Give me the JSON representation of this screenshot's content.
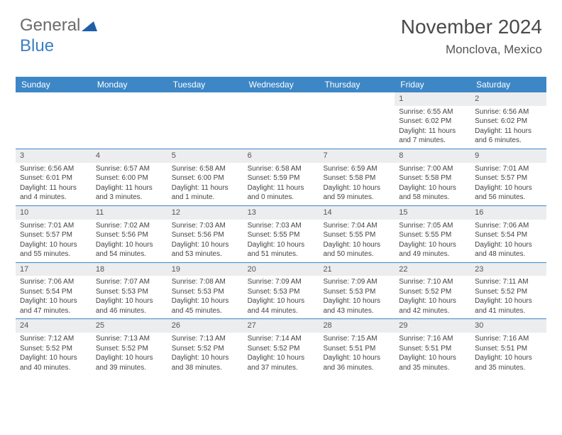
{
  "brand": {
    "part1": "General",
    "part2": "Blue"
  },
  "title": "November 2024",
  "location": "Monclova, Mexico",
  "colors": {
    "header_bg": "#3d87c7",
    "header_text": "#ffffff",
    "daynum_bg": "#ecedee",
    "text": "#444444",
    "rule": "#3d87c7",
    "brand_gray": "#6a6a6a",
    "brand_blue": "#3b7fc4"
  },
  "day_headers": [
    "Sunday",
    "Monday",
    "Tuesday",
    "Wednesday",
    "Thursday",
    "Friday",
    "Saturday"
  ],
  "weeks": [
    [
      {
        "n": "",
        "sunrise": "",
        "sunset": "",
        "daylight": ""
      },
      {
        "n": "",
        "sunrise": "",
        "sunset": "",
        "daylight": ""
      },
      {
        "n": "",
        "sunrise": "",
        "sunset": "",
        "daylight": ""
      },
      {
        "n": "",
        "sunrise": "",
        "sunset": "",
        "daylight": ""
      },
      {
        "n": "",
        "sunrise": "",
        "sunset": "",
        "daylight": ""
      },
      {
        "n": "1",
        "sunrise": "Sunrise: 6:55 AM",
        "sunset": "Sunset: 6:02 PM",
        "daylight": "Daylight: 11 hours and 7 minutes."
      },
      {
        "n": "2",
        "sunrise": "Sunrise: 6:56 AM",
        "sunset": "Sunset: 6:02 PM",
        "daylight": "Daylight: 11 hours and 6 minutes."
      }
    ],
    [
      {
        "n": "3",
        "sunrise": "Sunrise: 6:56 AM",
        "sunset": "Sunset: 6:01 PM",
        "daylight": "Daylight: 11 hours and 4 minutes."
      },
      {
        "n": "4",
        "sunrise": "Sunrise: 6:57 AM",
        "sunset": "Sunset: 6:00 PM",
        "daylight": "Daylight: 11 hours and 3 minutes."
      },
      {
        "n": "5",
        "sunrise": "Sunrise: 6:58 AM",
        "sunset": "Sunset: 6:00 PM",
        "daylight": "Daylight: 11 hours and 1 minute."
      },
      {
        "n": "6",
        "sunrise": "Sunrise: 6:58 AM",
        "sunset": "Sunset: 5:59 PM",
        "daylight": "Daylight: 11 hours and 0 minutes."
      },
      {
        "n": "7",
        "sunrise": "Sunrise: 6:59 AM",
        "sunset": "Sunset: 5:58 PM",
        "daylight": "Daylight: 10 hours and 59 minutes."
      },
      {
        "n": "8",
        "sunrise": "Sunrise: 7:00 AM",
        "sunset": "Sunset: 5:58 PM",
        "daylight": "Daylight: 10 hours and 58 minutes."
      },
      {
        "n": "9",
        "sunrise": "Sunrise: 7:01 AM",
        "sunset": "Sunset: 5:57 PM",
        "daylight": "Daylight: 10 hours and 56 minutes."
      }
    ],
    [
      {
        "n": "10",
        "sunrise": "Sunrise: 7:01 AM",
        "sunset": "Sunset: 5:57 PM",
        "daylight": "Daylight: 10 hours and 55 minutes."
      },
      {
        "n": "11",
        "sunrise": "Sunrise: 7:02 AM",
        "sunset": "Sunset: 5:56 PM",
        "daylight": "Daylight: 10 hours and 54 minutes."
      },
      {
        "n": "12",
        "sunrise": "Sunrise: 7:03 AM",
        "sunset": "Sunset: 5:56 PM",
        "daylight": "Daylight: 10 hours and 53 minutes."
      },
      {
        "n": "13",
        "sunrise": "Sunrise: 7:03 AM",
        "sunset": "Sunset: 5:55 PM",
        "daylight": "Daylight: 10 hours and 51 minutes."
      },
      {
        "n": "14",
        "sunrise": "Sunrise: 7:04 AM",
        "sunset": "Sunset: 5:55 PM",
        "daylight": "Daylight: 10 hours and 50 minutes."
      },
      {
        "n": "15",
        "sunrise": "Sunrise: 7:05 AM",
        "sunset": "Sunset: 5:55 PM",
        "daylight": "Daylight: 10 hours and 49 minutes."
      },
      {
        "n": "16",
        "sunrise": "Sunrise: 7:06 AM",
        "sunset": "Sunset: 5:54 PM",
        "daylight": "Daylight: 10 hours and 48 minutes."
      }
    ],
    [
      {
        "n": "17",
        "sunrise": "Sunrise: 7:06 AM",
        "sunset": "Sunset: 5:54 PM",
        "daylight": "Daylight: 10 hours and 47 minutes."
      },
      {
        "n": "18",
        "sunrise": "Sunrise: 7:07 AM",
        "sunset": "Sunset: 5:53 PM",
        "daylight": "Daylight: 10 hours and 46 minutes."
      },
      {
        "n": "19",
        "sunrise": "Sunrise: 7:08 AM",
        "sunset": "Sunset: 5:53 PM",
        "daylight": "Daylight: 10 hours and 45 minutes."
      },
      {
        "n": "20",
        "sunrise": "Sunrise: 7:09 AM",
        "sunset": "Sunset: 5:53 PM",
        "daylight": "Daylight: 10 hours and 44 minutes."
      },
      {
        "n": "21",
        "sunrise": "Sunrise: 7:09 AM",
        "sunset": "Sunset: 5:53 PM",
        "daylight": "Daylight: 10 hours and 43 minutes."
      },
      {
        "n": "22",
        "sunrise": "Sunrise: 7:10 AM",
        "sunset": "Sunset: 5:52 PM",
        "daylight": "Daylight: 10 hours and 42 minutes."
      },
      {
        "n": "23",
        "sunrise": "Sunrise: 7:11 AM",
        "sunset": "Sunset: 5:52 PM",
        "daylight": "Daylight: 10 hours and 41 minutes."
      }
    ],
    [
      {
        "n": "24",
        "sunrise": "Sunrise: 7:12 AM",
        "sunset": "Sunset: 5:52 PM",
        "daylight": "Daylight: 10 hours and 40 minutes."
      },
      {
        "n": "25",
        "sunrise": "Sunrise: 7:13 AM",
        "sunset": "Sunset: 5:52 PM",
        "daylight": "Daylight: 10 hours and 39 minutes."
      },
      {
        "n": "26",
        "sunrise": "Sunrise: 7:13 AM",
        "sunset": "Sunset: 5:52 PM",
        "daylight": "Daylight: 10 hours and 38 minutes."
      },
      {
        "n": "27",
        "sunrise": "Sunrise: 7:14 AM",
        "sunset": "Sunset: 5:52 PM",
        "daylight": "Daylight: 10 hours and 37 minutes."
      },
      {
        "n": "28",
        "sunrise": "Sunrise: 7:15 AM",
        "sunset": "Sunset: 5:51 PM",
        "daylight": "Daylight: 10 hours and 36 minutes."
      },
      {
        "n": "29",
        "sunrise": "Sunrise: 7:16 AM",
        "sunset": "Sunset: 5:51 PM",
        "daylight": "Daylight: 10 hours and 35 minutes."
      },
      {
        "n": "30",
        "sunrise": "Sunrise: 7:16 AM",
        "sunset": "Sunset: 5:51 PM",
        "daylight": "Daylight: 10 hours and 35 minutes."
      }
    ]
  ]
}
